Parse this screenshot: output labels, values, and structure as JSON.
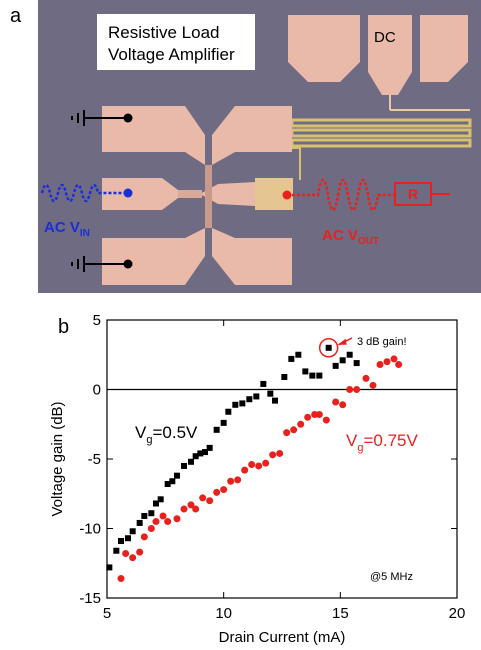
{
  "panel_a": {
    "label": "a",
    "title_lines": [
      "Resistive Load",
      "Voltage Amplifier"
    ],
    "dc": "DC",
    "r": "R",
    "ac_vin": {
      "main": "AC V",
      "sub": "IN"
    },
    "ac_vout": {
      "main": "AC V",
      "sub": "OUT"
    }
  },
  "chart_data": {
    "type": "scatter",
    "panel_label": "b",
    "x_label": "Drain Current (mA)",
    "y_label": "Voltage gain (dB)",
    "xlim": [
      5,
      20
    ],
    "xticks": [
      5,
      10,
      15,
      20
    ],
    "ylim": [
      -15,
      5
    ],
    "yticks": [
      -15,
      -10,
      -5,
      0,
      5
    ],
    "zero_line": true,
    "series": [
      {
        "color": "#000000",
        "marker": "square",
        "x": [
          5.1,
          5.4,
          5.6,
          5.9,
          6.1,
          6.4,
          6.6,
          6.9,
          7.1,
          7.3,
          7.6,
          7.8,
          8.0,
          8.3,
          8.6,
          8.8,
          9.0,
          9.2,
          9.4,
          9.7,
          10.0,
          10.2,
          10.5,
          10.8,
          11.1,
          11.4,
          11.7,
          12.0,
          12.2,
          12.6,
          12.9,
          13.2,
          13.5,
          13.8,
          14.1,
          14.5,
          14.8,
          15.1,
          15.4,
          15.7
        ],
        "values": [
          -12.8,
          -11.6,
          -10.9,
          -10.7,
          -10.2,
          -9.6,
          -9.1,
          -8.9,
          -8.2,
          -7.9,
          -6.8,
          -6.6,
          -6.2,
          -5.5,
          -5.2,
          -4.8,
          -4.6,
          -4.5,
          -4.2,
          -2.9,
          -2.4,
          -1.6,
          -1.1,
          -1.0,
          -0.7,
          -0.5,
          0.4,
          -0.3,
          -0.8,
          0.9,
          2.2,
          2.5,
          1.3,
          1.0,
          1.0,
          3.0,
          1.7,
          2.1,
          2.5,
          1.9
        ]
      },
      {
        "color": "#e8211d",
        "marker": "circle",
        "x": [
          5.6,
          5.8,
          6.1,
          6.4,
          6.6,
          6.9,
          7.1,
          7.4,
          7.6,
          8.0,
          8.3,
          8.6,
          8.8,
          9.1,
          9.4,
          9.7,
          10.0,
          10.3,
          10.6,
          10.9,
          11.2,
          11.5,
          11.8,
          12.1,
          12.4,
          12.7,
          13.0,
          13.3,
          13.6,
          13.9,
          14.1,
          14.4,
          14.8,
          15.1,
          15.4,
          15.7,
          16.1,
          16.4,
          16.7,
          17.0,
          17.3,
          17.5
        ],
        "values": [
          -13.6,
          -11.8,
          -12.1,
          -11.7,
          -10.6,
          -10.0,
          -9.5,
          -9.1,
          -9.5,
          -9.3,
          -8.6,
          -8.3,
          -8.6,
          -7.8,
          -8.0,
          -7.4,
          -7.2,
          -6.6,
          -6.5,
          -5.8,
          -5.4,
          -5.5,
          -5.3,
          -4.7,
          -4.6,
          -3.1,
          -2.9,
          -2.5,
          -2.0,
          -1.8,
          -1.8,
          -2.2,
          -0.9,
          -1.1,
          0.0,
          0.0,
          0.8,
          0.3,
          1.8,
          2.0,
          2.2,
          1.8
        ]
      }
    ],
    "annotations": {
      "gain": "3 dB gain!",
      "freq": "@5 MHz",
      "vg1": {
        "main": "V",
        "sub": "g",
        "rest": "=0.5V"
      },
      "vg2": {
        "main": "V",
        "sub": "g",
        "rest": "=0.75V"
      }
    }
  }
}
